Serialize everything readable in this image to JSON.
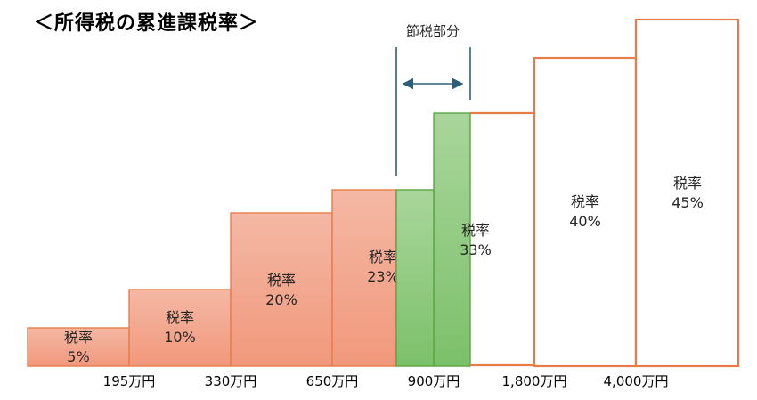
{
  "title": "＜所得税の累進課税率＞",
  "chart_data": {
    "type": "bar",
    "title": "＜所得税の累進課税率＞",
    "bar_label_prefix": "税率",
    "brackets": [
      {
        "rate": "5%",
        "rate_value": 5,
        "style": "filled"
      },
      {
        "rate": "10%",
        "rate_value": 10,
        "style": "filled"
      },
      {
        "rate": "20%",
        "rate_value": 20,
        "style": "filled"
      },
      {
        "rate": "23%",
        "rate_value": 23,
        "style": "filled"
      },
      {
        "rate": "33%",
        "rate_value": 33,
        "style": "green"
      },
      {
        "rate": "40%",
        "rate_value": 40,
        "style": "outline"
      },
      {
        "rate": "45%",
        "rate_value": 45,
        "style": "outline"
      }
    ],
    "x_ticks": [
      "195万円",
      "330万円",
      "650万円",
      "900万円",
      "1,800万円",
      "4,000万円"
    ],
    "annotation": "節税部分",
    "colors": {
      "fill_top": "#f4b8a4",
      "fill_bottom": "#f1987c",
      "outline": "#e87c48",
      "green_top": "#a9d69b",
      "green_bottom": "#7cc06a",
      "green_stroke": "#5aa641",
      "arrow": "#2e5f7a"
    }
  }
}
